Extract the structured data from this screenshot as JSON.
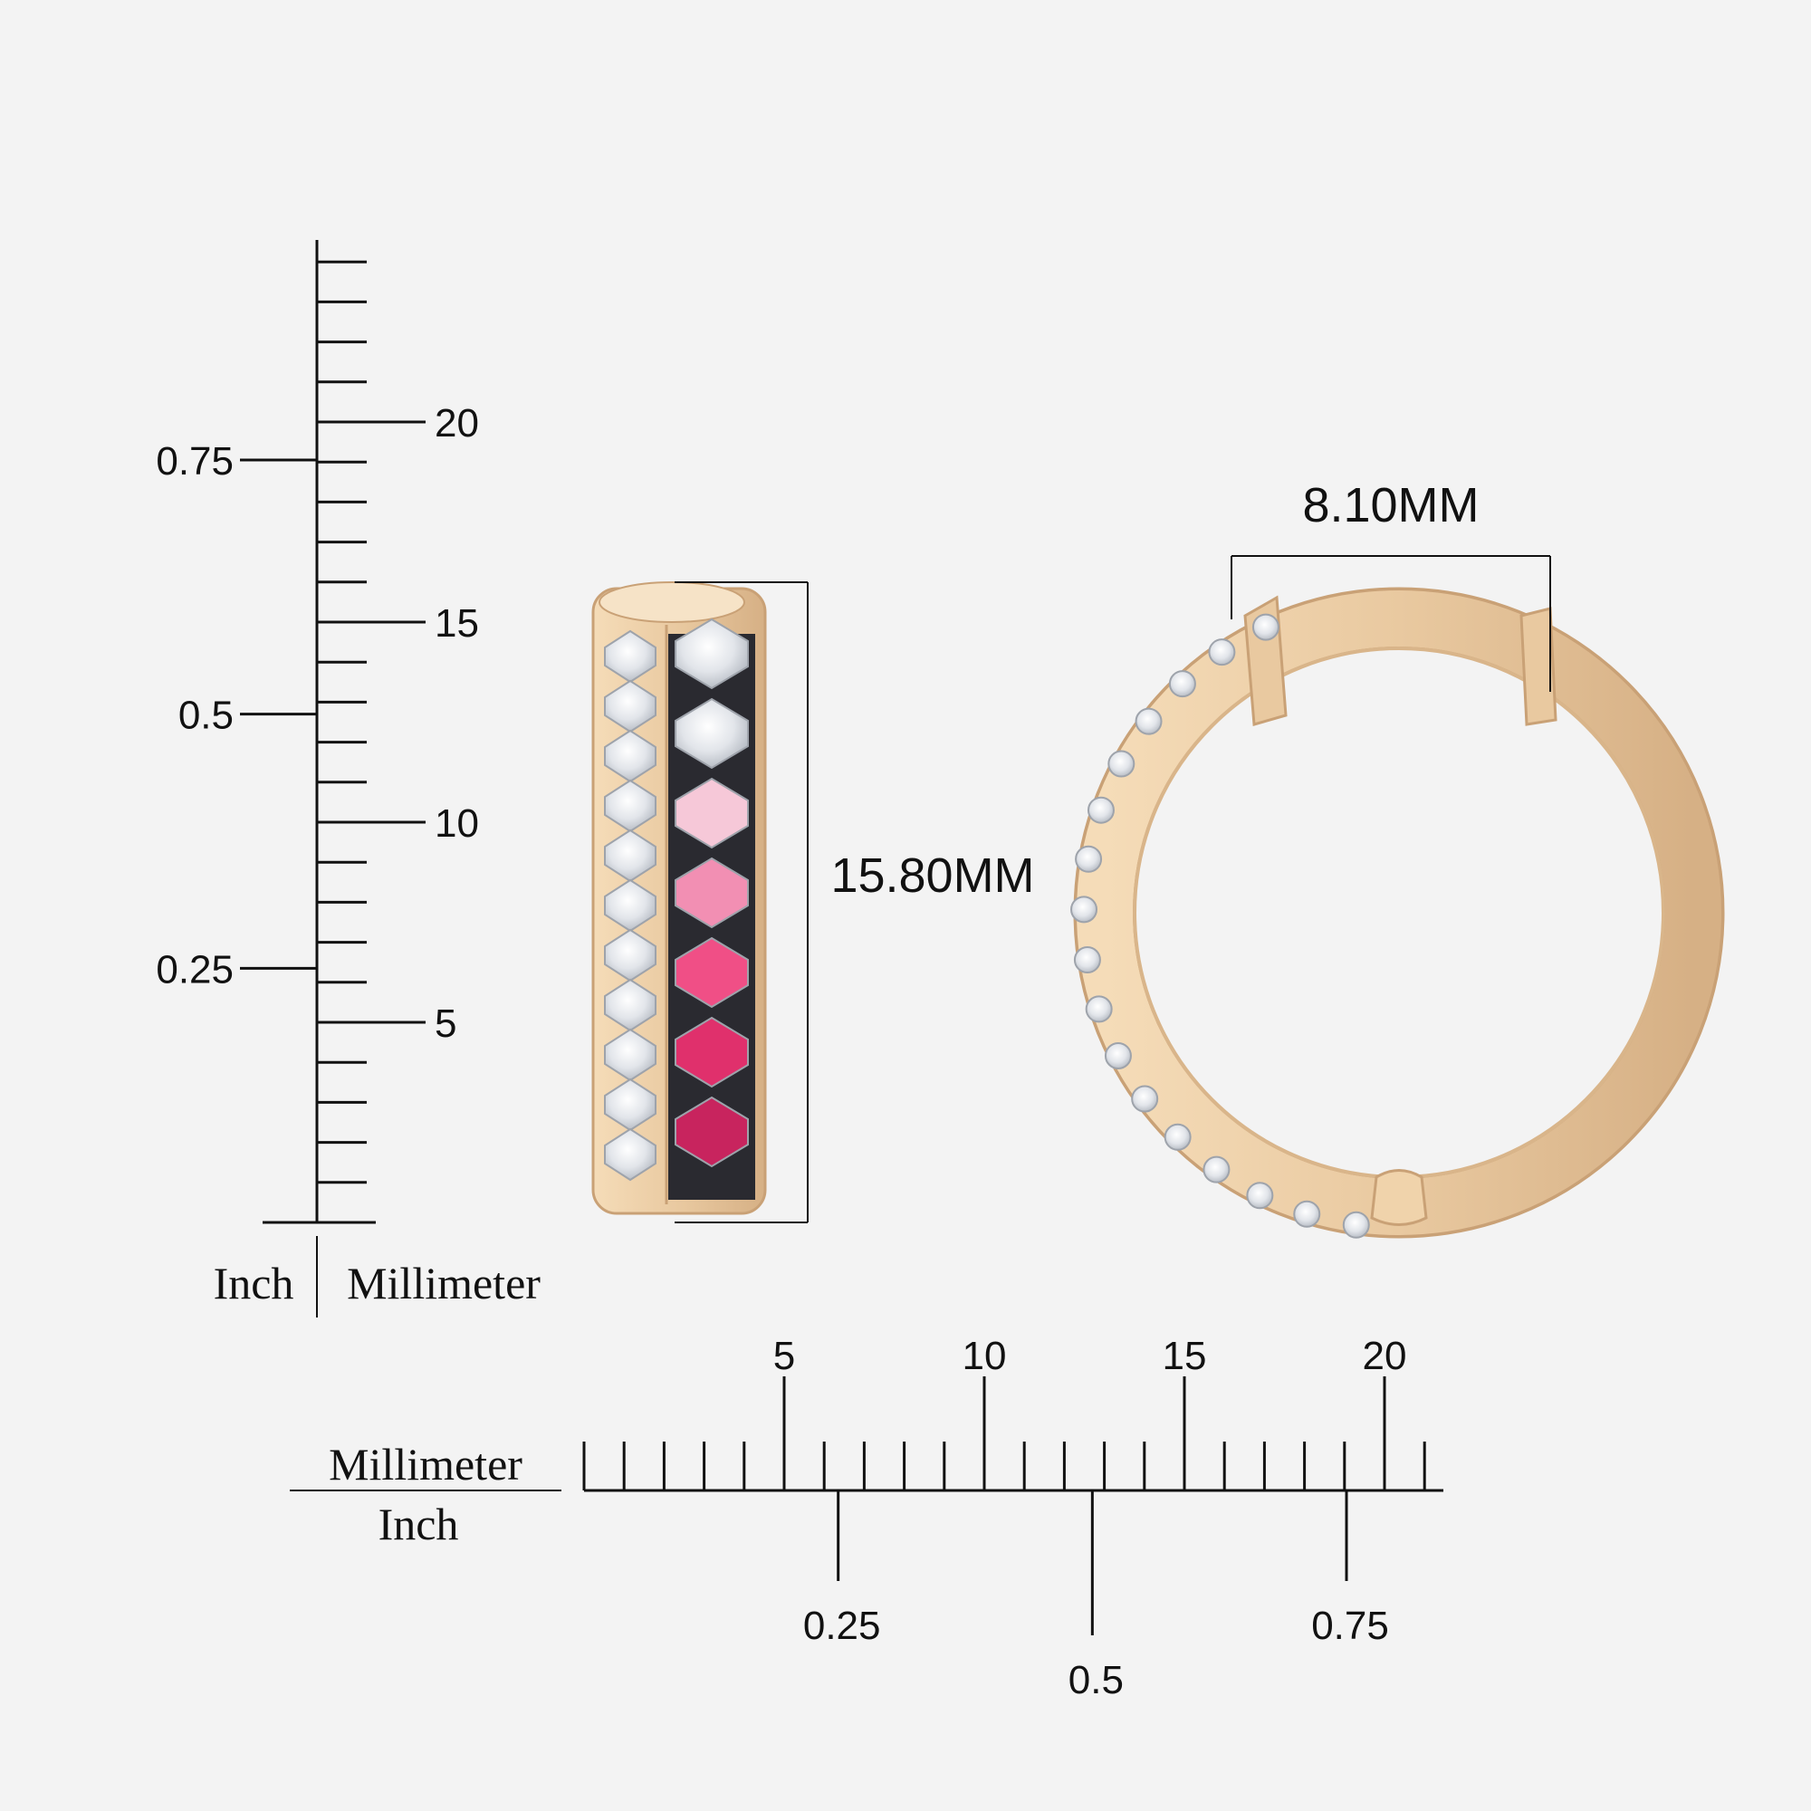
{
  "vertical_ruler": {
    "unit_left": "Inch",
    "unit_right": "Millimeter",
    "mm_labels": [
      "5",
      "10",
      "15",
      "20"
    ],
    "inch_labels": [
      "0.25",
      "0.5",
      "0.75"
    ]
  },
  "horizontal_ruler": {
    "unit_top": "Millimeter",
    "unit_bottom": "Inch",
    "mm_labels": [
      "5",
      "10",
      "15",
      "20"
    ],
    "inch_labels": [
      "0.25",
      "0.5",
      "0.75"
    ]
  },
  "dimensions": {
    "height": "15.80MM",
    "width": "8.10MM"
  },
  "colors": {
    "background": "#f3f3f3",
    "gold": "#e9c9a0",
    "gold_dark": "#c9a176",
    "diamond": "#e4e6ea",
    "pink_light": "#f6c8d8",
    "pink_mid": "#f28fb3",
    "pink_hot": "#f04f86",
    "pink_deep": "#e0306c",
    "ruby": "#c8245e",
    "black_rhodium": "#2a2a30"
  }
}
